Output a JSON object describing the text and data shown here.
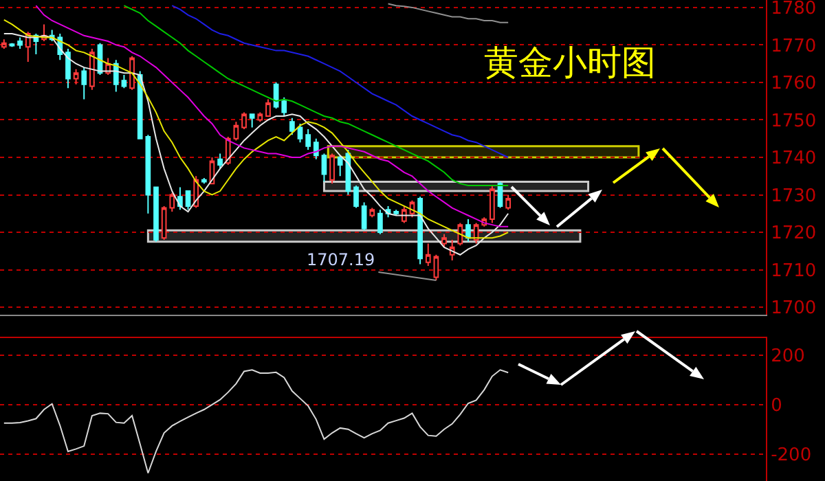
{
  "chart_data": [
    {
      "type": "candlestick",
      "title": "黄金小时图",
      "grid": "y",
      "categories": [
        null,
        null,
        null,
        null,
        null,
        null,
        null,
        null,
        null,
        null,
        null,
        null,
        null,
        null,
        null,
        null,
        null,
        null,
        null,
        null,
        null,
        null,
        null,
        null,
        null,
        null,
        null,
        null,
        null,
        null,
        null,
        null,
        null,
        null,
        null,
        null,
        null,
        null,
        null,
        null,
        null,
        null,
        null,
        null,
        null,
        null,
        null,
        null,
        null,
        null,
        null,
        null,
        null,
        null,
        null,
        null,
        null,
        null,
        null,
        null,
        null,
        null,
        null,
        null
      ],
      "ohlc": [
        [
          1769.5,
          1771.5,
          1769,
          1770.5
        ],
        [
          1770.2,
          1770.5,
          1769.5,
          1769.8
        ],
        [
          1771,
          1772,
          1769,
          1770
        ],
        [
          1769.5,
          1773.5,
          1765.5,
          1773
        ],
        [
          1772.5,
          1773,
          1767.5,
          1771
        ],
        [
          1771.5,
          1775.5,
          1771,
          1772.5
        ],
        [
          1772.5,
          1774,
          1771,
          1771.5
        ],
        [
          1772,
          1773,
          1766,
          1767.5
        ],
        [
          1768,
          1769,
          1758.5,
          1761
        ],
        [
          1761,
          1763.5,
          1759.5,
          1762.5
        ],
        [
          1763,
          1764,
          1755.5,
          1759.5
        ],
        [
          1759,
          1769,
          1758,
          1768
        ],
        [
          1770,
          1770.5,
          1762,
          1762.5
        ],
        [
          1762.5,
          1766.5,
          1762,
          1765
        ],
        [
          1765,
          1766,
          1757.5,
          1759.5
        ],
        [
          1760.5,
          1762,
          1758.5,
          1759
        ],
        [
          1758.5,
          1767,
          1758,
          1766.5
        ],
        [
          1762,
          1763,
          1745,
          1745
        ],
        [
          1745.5,
          1746,
          1725,
          1730
        ],
        [
          1732,
          1732,
          1717.5,
          1718
        ],
        [
          1718.5,
          1727,
          1718,
          1726.5
        ],
        [
          1726.5,
          1730.5,
          1725.5,
          1730
        ],
        [
          1729.5,
          1732,
          1726,
          1727
        ],
        [
          1731,
          1731,
          1726,
          1727
        ],
        [
          1727,
          1735,
          1726.5,
          1734
        ],
        [
          1734,
          1734.5,
          1733,
          1733.5
        ],
        [
          1733,
          1740,
          1733,
          1739
        ],
        [
          1739.5,
          1741,
          1737,
          1738
        ],
        [
          1738.5,
          1745.5,
          1738,
          1745
        ],
        [
          1745,
          1749.5,
          1744.5,
          1748.5
        ],
        [
          1748,
          1752,
          1747.5,
          1751.5
        ],
        [
          1751.5,
          1751.5,
          1748,
          1750.5
        ],
        [
          1750,
          1752,
          1749.5,
          1751.5
        ],
        [
          1751,
          1755.5,
          1751,
          1754.5
        ],
        [
          1759.5,
          1760,
          1753,
          1753.5
        ],
        [
          1755,
          1756,
          1751,
          1752
        ],
        [
          1749.5,
          1750.5,
          1746,
          1747
        ],
        [
          1748,
          1749,
          1744,
          1745
        ],
        [
          1746,
          1747.5,
          1742,
          1743
        ],
        [
          1744,
          1745,
          1739.5,
          1740.5
        ],
        [
          1740.5,
          1741,
          1733.5,
          1735.5
        ],
        [
          1734,
          1741,
          1733,
          1740.5
        ],
        [
          1740,
          1740.5,
          1735,
          1738
        ],
        [
          1741,
          1742,
          1730,
          1731
        ],
        [
          1732,
          1732.5,
          1726.5,
          1727
        ],
        [
          1727,
          1728,
          1720.5,
          1721
        ],
        [
          1724.5,
          1726.5,
          1724,
          1726
        ],
        [
          1725,
          1726,
          1719.5,
          1720
        ],
        [
          1726,
          1727,
          1724,
          1725
        ],
        [
          1725.5,
          1726,
          1724.5,
          1725
        ],
        [
          1723,
          1727,
          1722.5,
          1726
        ],
        [
          1725,
          1728.5,
          1724,
          1728
        ],
        [
          1729,
          1729.5,
          1711.5,
          1713
        ],
        [
          1712,
          1717,
          1711,
          1714
        ],
        [
          1708,
          1714,
          1707.19,
          1713.5
        ],
        [
          1717,
          1719.5,
          1716,
          1718.5
        ],
        [
          1714,
          1718,
          1712.5,
          1716
        ],
        [
          1717,
          1722.5,
          1716.5,
          1722
        ],
        [
          1722,
          1723.5,
          1717.5,
          1718.5
        ],
        [
          1718,
          1722.5,
          1717,
          1722
        ],
        [
          1722,
          1724,
          1721.5,
          1723.5
        ],
        [
          1723.5,
          1732.5,
          1722.5,
          1731.5
        ],
        [
          1733,
          1733.5,
          1726.5,
          1727
        ],
        [
          1726.5,
          1730,
          1726,
          1729
        ]
      ],
      "series": [
        {
          "type": "line",
          "color": "#e8e8e8",
          "values": [
            1773,
            1773,
            1772.5,
            1772,
            1772,
            1772.5,
            1772,
            1769,
            1766.5,
            1765,
            1764,
            1763.5,
            1763,
            1763,
            1763,
            1762.5,
            1762.5,
            1762,
            1755,
            1745,
            1737,
            1731,
            1727,
            1725.5,
            1728.5,
            1731,
            1734,
            1737,
            1739.5,
            1742,
            1744.5,
            1746.5,
            1748.5,
            1750,
            1751,
            1751,
            1751.5,
            1751,
            1749,
            1747.5,
            1745.5,
            1743,
            1740.5,
            1738.5,
            1735,
            1731.5,
            1729.5,
            1727,
            1725,
            1724.5,
            1724.5,
            1724.5,
            1724.5,
            1721,
            1718.5,
            1716,
            1715,
            1714,
            1715.5,
            1716.5,
            1718.5,
            1720,
            1722,
            1725
          ]
        },
        {
          "type": "line",
          "color": "#e6e600",
          "values": [
            1776.7,
            1775.5,
            1774,
            1772.5,
            1772.3,
            1772,
            1772,
            1771,
            1770,
            1768.5,
            1768,
            1767,
            1766,
            1765,
            1764.5,
            1763.5,
            1762.5,
            1759.5,
            1756,
            1752,
            1747,
            1744,
            1740,
            1737,
            1733.5,
            1731,
            1730,
            1731,
            1734,
            1737,
            1739.5,
            1741.5,
            1743,
            1744.5,
            1745.5,
            1744.5,
            1746.5,
            1748.5,
            1749.5,
            1749,
            1748,
            1746.5,
            1744,
            1741.5,
            1738.5,
            1736,
            1733.5,
            1731,
            1729,
            1728,
            1727,
            1726,
            1725,
            1723.5,
            1722.5,
            1721.5,
            1720.5,
            1719.5,
            1718.5,
            1718.5,
            1718.5,
            1718.5,
            1719,
            1720
          ]
        },
        {
          "type": "line",
          "color": "#e000e0",
          "values": [
            null,
            null,
            null,
            null,
            1780.5,
            1778,
            1776.5,
            1775.5,
            1774.5,
            1773.5,
            1772.5,
            1772,
            1771.5,
            1771,
            1770,
            1769.5,
            1768,
            1767,
            1765.5,
            1764,
            1762,
            1760,
            1758,
            1756,
            1753.5,
            1751,
            1749,
            1746,
            1744.5,
            1743.5,
            1742.5,
            1742,
            1741.5,
            1741,
            1741,
            1740.5,
            1740,
            1740,
            1741,
            1741.5,
            1742.5,
            1743,
            1743,
            1742.5,
            1742,
            1741.5,
            1740.5,
            1739.5,
            1739,
            1737.5,
            1736,
            1735,
            1733,
            1731,
            1729.5,
            1728,
            1726.5,
            1725.5,
            1724.5,
            1723.5,
            1722.5,
            1722,
            1721.5,
            1721.5
          ]
        },
        {
          "type": "line",
          "color": "#00c800",
          "values": [
            null,
            null,
            null,
            null,
            null,
            null,
            null,
            null,
            null,
            null,
            null,
            null,
            null,
            null,
            null,
            1780.5,
            1779.5,
            1778.5,
            1776.5,
            1775,
            1773.5,
            1772,
            1770.5,
            1768.5,
            1767,
            1765.5,
            1764,
            1762.5,
            1761,
            1760,
            1759,
            1758,
            1757,
            1756,
            1755,
            1755.5,
            1755,
            1754,
            1753,
            1752,
            1751,
            1750.5,
            1749.5,
            1749,
            1748,
            1747,
            1746,
            1745,
            1744,
            1743,
            1742,
            1741,
            1740,
            1739,
            1737.5,
            1736,
            1734,
            1733,
            1732.5,
            1732.5,
            1732.5,
            1732.5,
            1732.5,
            1732.5
          ]
        },
        {
          "type": "line",
          "color": "#1e1ee6",
          "values": [
            null,
            null,
            null,
            null,
            null,
            null,
            null,
            null,
            null,
            null,
            null,
            null,
            null,
            null,
            null,
            null,
            null,
            null,
            null,
            null,
            null,
            1780.5,
            1779.5,
            1778,
            1777,
            1775.5,
            1774,
            1773,
            1772.5,
            1771.5,
            1770.5,
            1770,
            1769.5,
            1769,
            1768.5,
            1768.5,
            1768,
            1767.5,
            1767,
            1766,
            1765,
            1764,
            1763,
            1761.5,
            1760,
            1758.5,
            1757,
            1756,
            1755,
            1754,
            1752.5,
            1751,
            1750,
            1749,
            1748,
            1747,
            1746,
            1745.5,
            1744.5,
            1744,
            1743,
            1742,
            1741,
            1740
          ]
        },
        {
          "type": "line",
          "color": "#909090",
          "values": [
            null,
            null,
            null,
            null,
            null,
            null,
            null,
            null,
            null,
            null,
            null,
            null,
            null,
            null,
            null,
            null,
            null,
            null,
            null,
            null,
            null,
            null,
            null,
            null,
            null,
            null,
            null,
            null,
            null,
            null,
            null,
            null,
            null,
            null,
            null,
            null,
            null,
            null,
            null,
            null,
            null,
            null,
            null,
            null,
            null,
            null,
            null,
            null,
            1781,
            1780.5,
            1780.3,
            1780,
            1779.5,
            1779,
            1778.5,
            1778,
            1777.5,
            1777.5,
            1777,
            1777,
            1776.5,
            1776.5,
            1776,
            1776
          ]
        }
      ],
      "ylim": [
        1698,
        1782
      ],
      "yticks": [
        1700,
        1710,
        1720,
        1730,
        1740,
        1750,
        1760,
        1770,
        1780
      ],
      "bands": [
        {
          "axis": "y",
          "from": 1740,
          "to": 1743,
          "color": "#e6e600"
        },
        {
          "axis": "y",
          "from": 1731,
          "to": 1733.5,
          "color": "#e0e0e0"
        },
        {
          "axis": "y",
          "from": 1717.5,
          "to": 1720.5,
          "color": "#e0e0e0"
        }
      ],
      "annotations": [
        "1707.19"
      ]
    },
    {
      "type": "line",
      "grid": "y",
      "categories": [
        null,
        null,
        null,
        null,
        null,
        null,
        null,
        null,
        null,
        null,
        null,
        null,
        null,
        null,
        null,
        null,
        null,
        null,
        null,
        null,
        null,
        null,
        null,
        null,
        null,
        null,
        null,
        null,
        null,
        null,
        null,
        null,
        null,
        null,
        null,
        null,
        null,
        null,
        null,
        null,
        null,
        null,
        null,
        null,
        null,
        null,
        null,
        null,
        null,
        null,
        null,
        null,
        null,
        null,
        null,
        null,
        null,
        null,
        null,
        null,
        null,
        null,
        null,
        null
      ],
      "series": [
        {
          "color": "#d8d8d8",
          "values": [
            -75,
            -75,
            -73,
            -66,
            -57,
            -20,
            3,
            -85,
            -190,
            -180,
            -168,
            -45,
            -35,
            -37,
            -72,
            -75,
            -45,
            -160,
            -278,
            -190,
            -115,
            -86,
            -68,
            -51,
            -35,
            -20,
            0,
            20,
            50,
            85,
            135,
            141,
            128,
            128,
            131,
            110,
            55,
            25,
            -5,
            -60,
            -140,
            -115,
            -95,
            -100,
            -118,
            -135,
            -118,
            -105,
            -75,
            -65,
            -55,
            -35,
            -90,
            -125,
            -128,
            -100,
            -78,
            -40,
            5,
            18,
            60,
            115,
            141,
            130
          ]
        }
      ],
      "ylim": [
        -310,
        270
      ],
      "yticks": [
        200,
        0,
        -200
      ]
    }
  ]
}
